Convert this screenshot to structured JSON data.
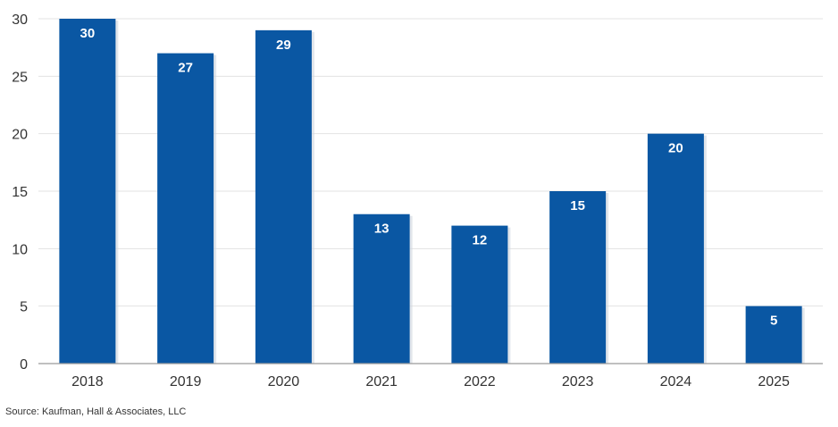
{
  "chart_data": {
    "type": "bar",
    "title": "",
    "xlabel": "",
    "ylabel": "",
    "categories": [
      "2018",
      "2019",
      "2020",
      "2021",
      "2022",
      "2023",
      "2024",
      "2025"
    ],
    "values": [
      30,
      27,
      29,
      13,
      12,
      15,
      20,
      5
    ],
    "data_labels": [
      "30",
      "27",
      "29",
      "13",
      "12",
      "15",
      "20",
      "5"
    ],
    "ylim": [
      0,
      30
    ],
    "yticks": [
      0,
      5,
      10,
      15,
      20,
      25,
      30
    ],
    "grid": true,
    "legend": "none",
    "bar_color": "#0a57a3",
    "label_color": "#ffffff"
  },
  "source_note": "Source: Kaufman, Hall & Associates, LLC"
}
